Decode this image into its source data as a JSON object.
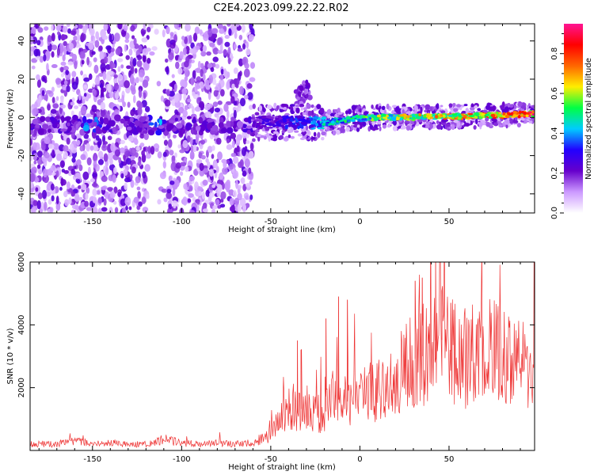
{
  "figure": {
    "title": "C2E4.2023.099.22.22.R02"
  },
  "chart_data": [
    {
      "type": "heatmap",
      "xlabel": "Height of straight line (km)",
      "ylabel": "Frequency (Hz)",
      "xlim": [
        -185,
        98
      ],
      "ylim": [
        -50,
        49
      ],
      "xticks": [
        -150,
        -100,
        -50,
        0,
        50
      ],
      "yticks": [
        -40,
        -20,
        0,
        20,
        40
      ],
      "colorbar": {
        "label": "Normalized spectral amplitude",
        "range": [
          0,
          0.95
        ],
        "ticks": [
          0.0,
          0.2,
          0.4,
          0.6,
          0.8
        ],
        "colormap": [
          "#ffffff",
          "#cc99ff",
          "#6600cc",
          "#2200ff",
          "#00ccff",
          "#00ff44",
          "#ffee00",
          "#ff6600",
          "#ff0000",
          "#ff1493"
        ]
      },
      "regions": [
        {
          "name": "broadband noise",
          "x": [
            -185,
            -60
          ],
          "y": [
            -50,
            49
          ]
        },
        {
          "name": "spectral line",
          "x": [
            -60,
            98
          ],
          "y": [
            -8,
            5
          ]
        },
        {
          "name": "secondary echo",
          "x": [
            -36,
            -28
          ],
          "y": [
            5,
            15
          ]
        }
      ],
      "ridge": {
        "x": [
          -60,
          -50,
          -40,
          -30,
          -20,
          -10,
          0,
          10,
          20,
          30,
          40,
          50,
          60,
          70,
          80,
          90,
          98
        ],
        "y": [
          -3,
          -2.5,
          -2.5,
          -2.5,
          -3,
          -1.5,
          -0.5,
          0,
          0,
          0,
          0.5,
          0.5,
          0.5,
          1,
          1,
          1.5,
          2
        ],
        "amplitude": [
          0.25,
          0.3,
          0.35,
          0.4,
          0.5,
          0.55,
          0.6,
          0.65,
          0.7,
          0.72,
          0.75,
          0.8,
          0.82,
          0.85,
          0.88,
          0.92,
          0.95
        ]
      }
    },
    {
      "type": "line",
      "xlabel": "Height of straight line (km)",
      "ylabel": "SNR (10 * v/v)",
      "xlim": [
        -185,
        98
      ],
      "ylim": [
        0,
        6000
      ],
      "xticks": [
        -150,
        -100,
        -50,
        0,
        50
      ],
      "yticks": [
        2000,
        4000,
        6000
      ],
      "color": "#ee3333",
      "series": [
        {
          "x": [
            -185,
            -170,
            -160,
            -150,
            -140,
            -130,
            -120,
            -110,
            -100,
            -90,
            -80,
            -70,
            -60,
            -50,
            -45,
            -40,
            -35,
            -30,
            -25,
            -20,
            -15,
            -10,
            -5,
            0,
            5,
            10,
            15,
            20,
            25,
            30,
            35,
            40,
            45,
            50,
            55,
            60,
            65,
            70,
            75,
            80,
            85,
            90,
            95,
            98
          ],
          "y": [
            200,
            200,
            300,
            200,
            250,
            200,
            200,
            350,
            250,
            200,
            250,
            200,
            250,
            500,
            1000,
            1300,
            1200,
            1500,
            1200,
            1100,
            1800,
            1500,
            1600,
            1700,
            1900,
            2000,
            2100,
            2300,
            2600,
            2900,
            3000,
            3400,
            3600,
            3200,
            3000,
            2900,
            3100,
            3000,
            3200,
            3000,
            2900,
            2800,
            2600,
            3100
          ]
        }
      ],
      "spikes": [
        {
          "x": 42.5,
          "y": 6000
        },
        {
          "x": 46,
          "y": 5100
        },
        {
          "x": -35,
          "y": 3500
        },
        {
          "x": -33,
          "y": 3200
        },
        {
          "x": -19,
          "y": 4200
        },
        {
          "x": -12,
          "y": 4900
        },
        {
          "x": -7,
          "y": 4800
        },
        {
          "x": 31,
          "y": 5400
        },
        {
          "x": 35,
          "y": 5500
        },
        {
          "x": 51,
          "y": 4700
        }
      ]
    }
  ]
}
